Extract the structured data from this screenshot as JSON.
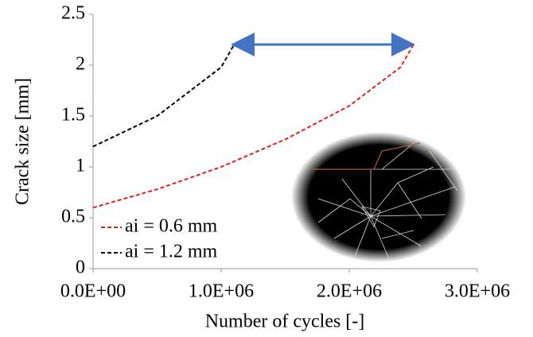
{
  "chart_data": {
    "type": "line",
    "xlabel": "Number of cycles [-]",
    "ylabel": "Crack size [mm]",
    "series": [
      {
        "name": "ai = 0.6 mm",
        "color": "#e02020",
        "dash": true,
        "x": [
          0,
          500000,
          1000000,
          1500000,
          2000000,
          2400000,
          2500000
        ],
        "values": [
          0.6,
          0.78,
          1.0,
          1.27,
          1.6,
          1.98,
          2.2
        ]
      },
      {
        "name": "ai = 1.2 mm",
        "color": "#000000",
        "dash": true,
        "x": [
          0,
          500000,
          1000000,
          1100000
        ],
        "values": [
          1.2,
          1.5,
          1.98,
          2.2
        ]
      }
    ],
    "xlim": [
      0,
      3000000
    ],
    "xticks": [
      {
        "value": 0,
        "label": "0.0E+00"
      },
      {
        "value": 1000000,
        "label": "1.0E+06"
      },
      {
        "value": 2000000,
        "label": "2.0E+06"
      },
      {
        "value": 3000000,
        "label": "3.0E+06"
      }
    ],
    "ylim": [
      0,
      2.5
    ],
    "yticks": [
      0,
      0.5,
      1,
      1.5,
      2,
      2.5
    ],
    "grid": false,
    "legend": "lower left"
  }
}
